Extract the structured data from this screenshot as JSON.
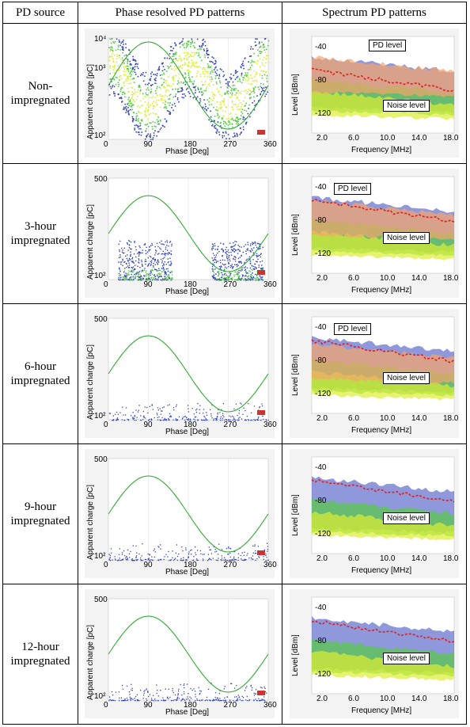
{
  "table": {
    "headers": [
      "PD source",
      "Phase resolved PD patterns",
      "Spectrum PD patterns"
    ],
    "rows": [
      {
        "source": [
          "Non-",
          "impregnated"
        ],
        "phase": {
          "y_top": "10⁴",
          "y_mid": "10³",
          "y_bottom": "10²",
          "noise_band": "full"
        },
        "spectrum": {
          "callouts": [
            "PD level",
            "Noise level"
          ]
        }
      },
      {
        "source": [
          "3-hour",
          "impregnated"
        ],
        "phase": {
          "y_top": "500",
          "y_mid": "",
          "y_bottom": "10²",
          "noise_band": "clusters"
        },
        "spectrum": {
          "callouts": [
            "PD level",
            "Noise level"
          ]
        }
      },
      {
        "source": [
          "6-hour",
          "impregnated"
        ],
        "phase": {
          "y_top": "500",
          "y_mid": "",
          "y_bottom": "10²",
          "noise_band": "low"
        },
        "spectrum": {
          "callouts": [
            "PD level",
            "Noise level"
          ]
        }
      },
      {
        "source": [
          "9-hour",
          "impregnated"
        ],
        "phase": {
          "y_top": "500",
          "y_mid": "",
          "y_bottom": "10²",
          "noise_band": "low"
        },
        "spectrum": {
          "callouts": [
            "",
            "Noise level"
          ]
        }
      },
      {
        "source": [
          "12-hour",
          "impregnated"
        ],
        "phase": {
          "y_top": "500",
          "y_mid": "",
          "y_bottom": "10²",
          "noise_band": "low"
        },
        "spectrum": {
          "callouts": [
            "",
            "Noise level"
          ]
        }
      }
    ]
  },
  "phase_chart": {
    "ylabel": "Apparent charge [pC]",
    "xlabel": "Phase [Deg]",
    "xticks": [
      "0",
      "90",
      "180",
      "270",
      "360"
    ]
  },
  "spectrum_chart": {
    "ylabel": "Level [dBm]",
    "xlabel": "Frequency [MHz]",
    "yticks": [
      "-40",
      "-80",
      "-120"
    ],
    "xticks": [
      "2.0",
      "6.0",
      "10.0",
      "14.0",
      "18.0"
    ]
  },
  "colors": {
    "sine": "#33aa33",
    "trace_red": "#e02020",
    "noise_blue": "#3344bb",
    "noise_green": "#55cc44",
    "noise_yellow": "#ddee33",
    "pd_orange": "#f6a56a"
  }
}
